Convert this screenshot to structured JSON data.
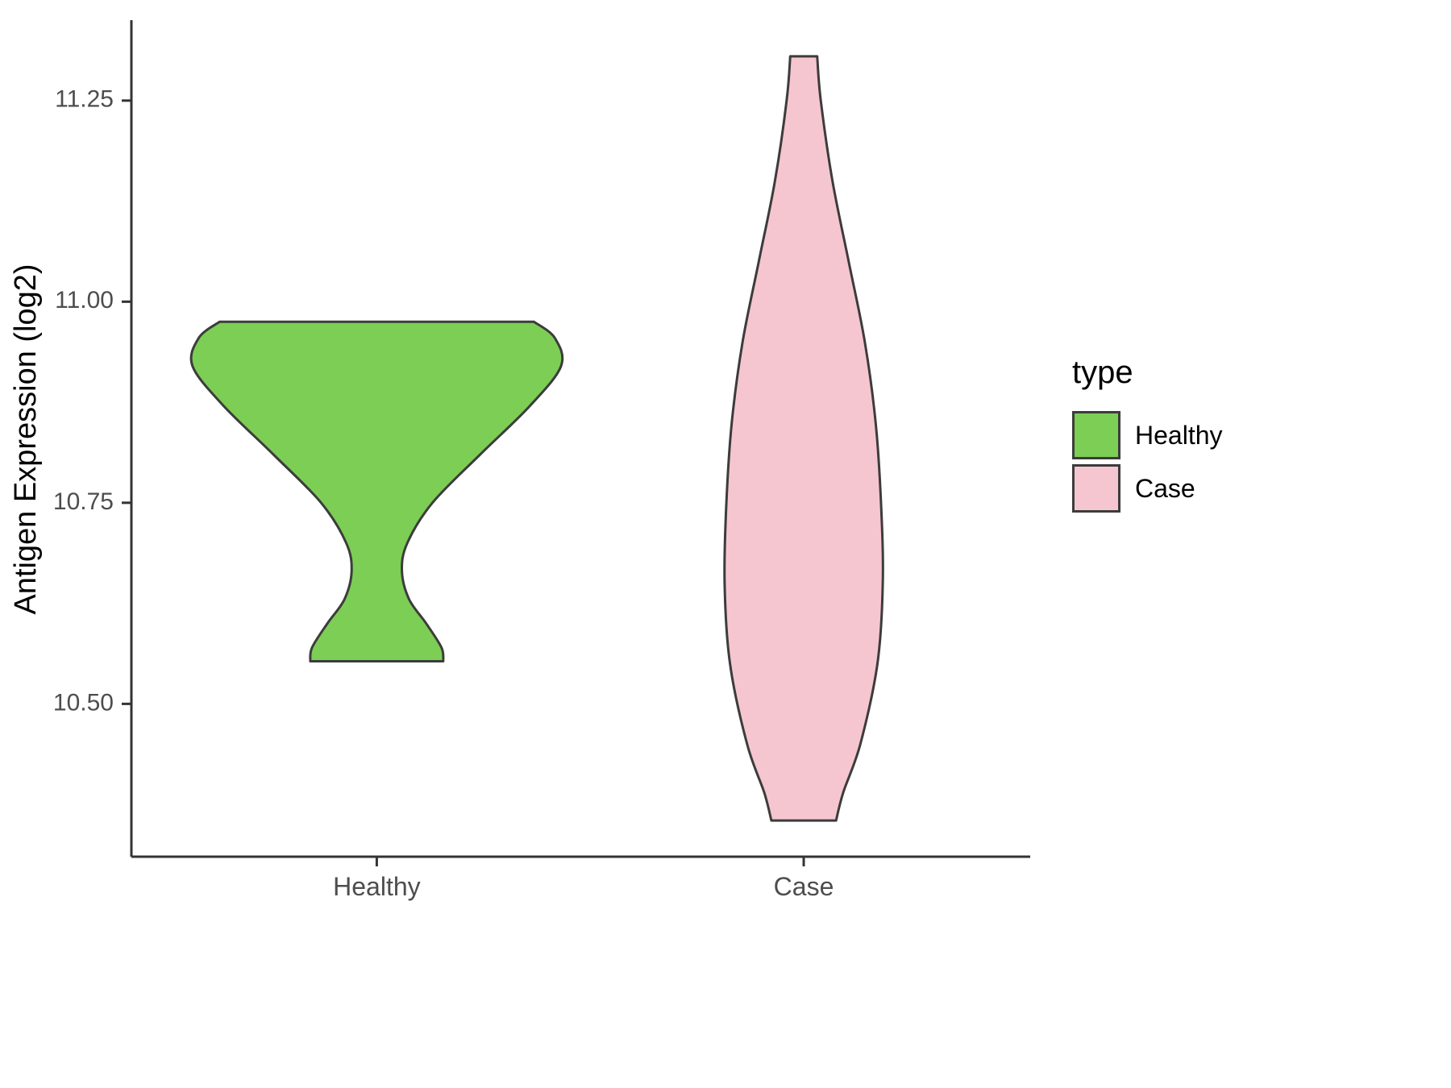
{
  "chart_data": {
    "type": "violin",
    "title": "",
    "xlabel": "",
    "ylabel": "Antigen Expression (log2)",
    "categories": [
      "Healthy",
      "Case"
    ],
    "ylim": [
      10.31,
      11.35
    ],
    "yticks": [
      10.5,
      10.75,
      11.0,
      11.25
    ],
    "ytick_labels": [
      "10.50",
      "10.75",
      "11.00",
      "11.25"
    ],
    "grid": "off",
    "axis_color": "#333333",
    "violin_stroke": "#3c3c3c",
    "legend": {
      "title": "type",
      "position": "right",
      "entries": [
        {
          "label": "Healthy",
          "color": "#7cce54"
        },
        {
          "label": "Case",
          "color": "#f6c6d0"
        }
      ]
    },
    "series": [
      {
        "name": "Healthy",
        "fill": "#7cce54",
        "value_range": [
          10.553,
          10.975
        ],
        "profile": [
          [
            10.975,
            0.175
          ],
          [
            10.955,
            0.198
          ],
          [
            10.92,
            0.205
          ],
          [
            10.87,
            0.17
          ],
          [
            10.81,
            0.115
          ],
          [
            10.75,
            0.062
          ],
          [
            10.7,
            0.034
          ],
          [
            10.665,
            0.028
          ],
          [
            10.63,
            0.036
          ],
          [
            10.6,
            0.055
          ],
          [
            10.57,
            0.072
          ],
          [
            10.553,
            0.074
          ]
        ]
      },
      {
        "name": "Case",
        "fill": "#f6c6d0",
        "value_range": [
          10.355,
          11.305
        ],
        "profile": [
          [
            11.305,
            0.015
          ],
          [
            11.25,
            0.019
          ],
          [
            11.15,
            0.032
          ],
          [
            11.05,
            0.05
          ],
          [
            10.95,
            0.068
          ],
          [
            10.85,
            0.08
          ],
          [
            10.75,
            0.086
          ],
          [
            10.65,
            0.088
          ],
          [
            10.55,
            0.082
          ],
          [
            10.45,
            0.063
          ],
          [
            10.39,
            0.044
          ],
          [
            10.355,
            0.036
          ]
        ]
      }
    ]
  }
}
